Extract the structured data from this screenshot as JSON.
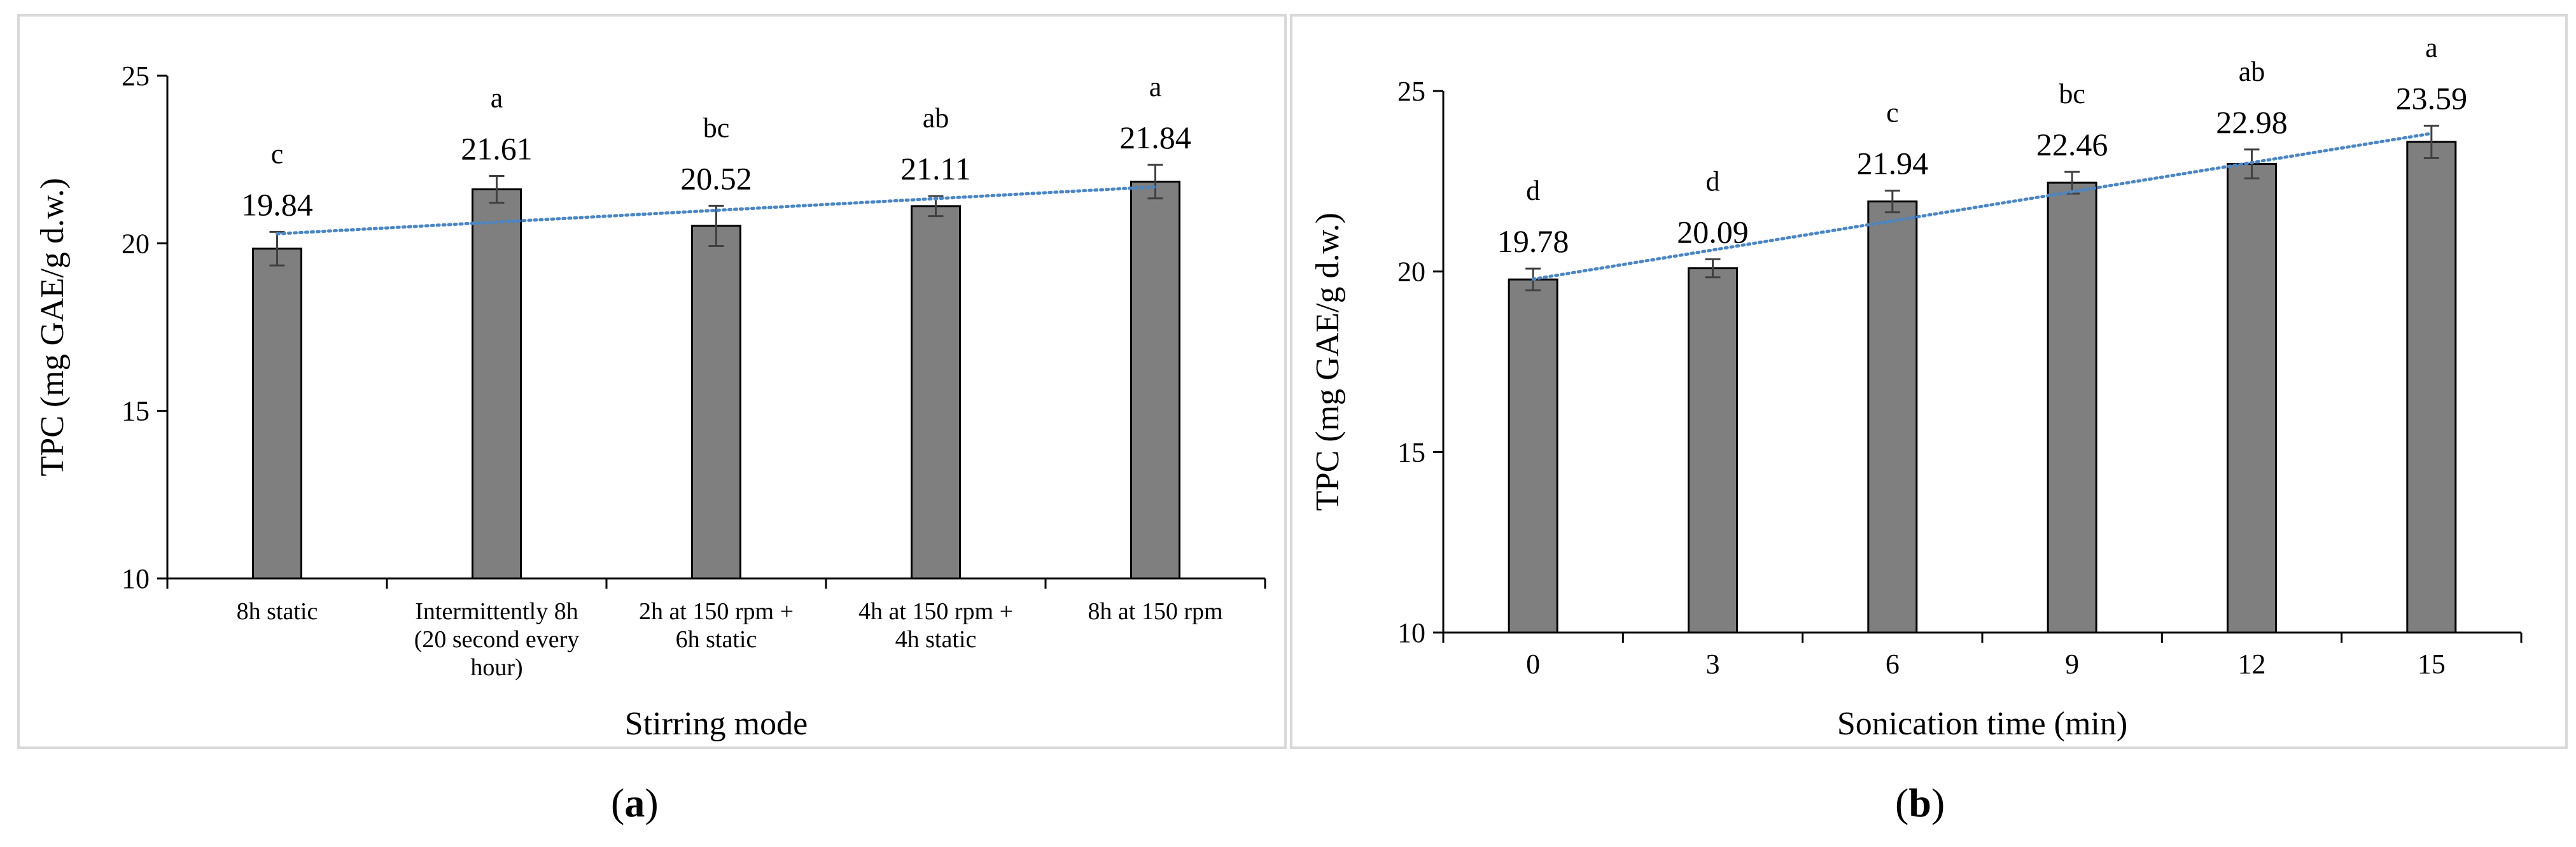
{
  "chart_data": [
    {
      "type": "bar",
      "panel_label": "a",
      "title": "",
      "xlabel": "Stirring mode",
      "ylabel": "TPC (mg GAE/g d.w.)",
      "ylim": [
        10,
        25
      ],
      "yticks": [
        10,
        15,
        20,
        25
      ],
      "categories": [
        [
          "8h static"
        ],
        [
          "Intermittently 8h",
          "(20 second every",
          "hour)"
        ],
        [
          "2h at 150 rpm +",
          "6h static"
        ],
        [
          "4h at 150 rpm +",
          "4h static"
        ],
        [
          "8h at 150 rpm"
        ]
      ],
      "values": [
        19.84,
        21.61,
        20.52,
        21.11,
        21.84
      ],
      "value_labels": [
        "19.84",
        "21.61",
        "20.52",
        "21.11",
        "21.84"
      ],
      "errors": [
        0.5,
        0.4,
        0.6,
        0.3,
        0.5
      ],
      "letters": [
        "c",
        "a",
        "bc",
        "ab",
        "a"
      ],
      "trendline": {
        "type": "linear",
        "style": "dotted",
        "color": "#4a86c5"
      },
      "bar_color": "#7f7f7f",
      "grid": false,
      "legend": "none"
    },
    {
      "type": "bar",
      "panel_label": "b",
      "title": "",
      "xlabel": "Sonication time (min)",
      "ylabel": "TPC (mg GAE/g d.w.)",
      "ylim": [
        10,
        25
      ],
      "yticks": [
        10,
        15,
        20,
        25
      ],
      "categories": [
        [
          "0"
        ],
        [
          "3"
        ],
        [
          "6"
        ],
        [
          "9"
        ],
        [
          "12"
        ],
        [
          "15"
        ]
      ],
      "values": [
        19.78,
        20.09,
        21.94,
        22.46,
        22.98,
        23.59
      ],
      "value_labels": [
        "19.78",
        "20.09",
        "21.94",
        "22.46",
        "22.98",
        "23.59"
      ],
      "errors": [
        0.3,
        0.25,
        0.3,
        0.3,
        0.4,
        0.45
      ],
      "letters": [
        "d",
        "d",
        "c",
        "bc",
        "ab",
        "a"
      ],
      "trendline": {
        "type": "linear",
        "style": "dotted",
        "color": "#4a86c5"
      },
      "bar_color": "#7f7f7f",
      "grid": false,
      "legend": "none"
    }
  ],
  "captions": {
    "a_open": "(",
    "a_letter": "a",
    "a_close": ")",
    "b_open": "(",
    "b_letter": "b",
    "b_close": ")"
  }
}
